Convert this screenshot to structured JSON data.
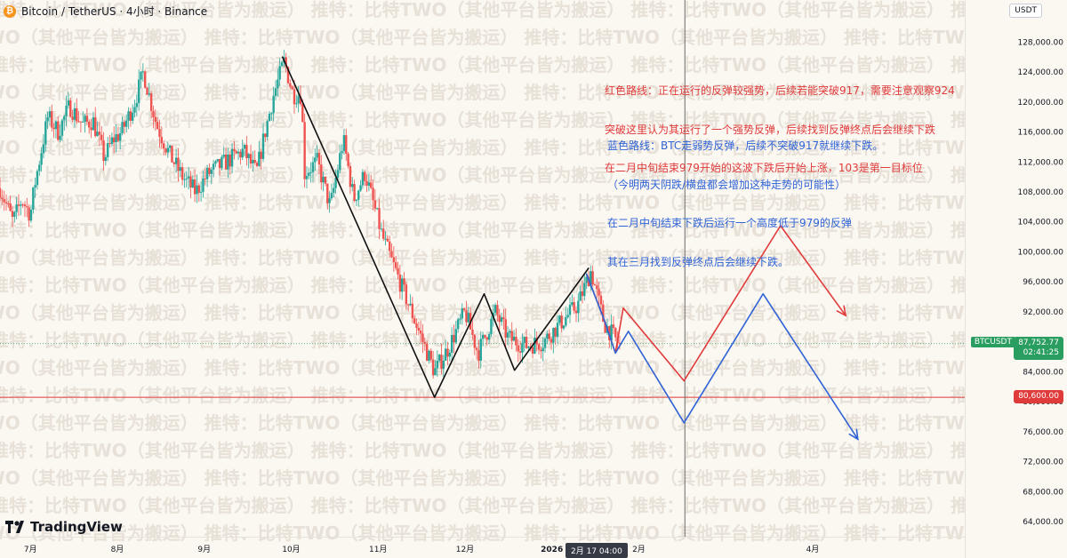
{
  "header": {
    "symbol_title": "Bitcoin / TetherUS · 4小时 · Binance",
    "currency_button": "USDT"
  },
  "watermark": [
    "推特：比特TWO（其他平台皆为搬运）"
  ],
  "annotations": {
    "red_route": [
      "红色路线：正在运行的反弹较强势，后续若能突破917，需要注意观察924",
      "突破这里认为其运行了一个强势反弹，后续找到反弹终点后会继续下跌",
      "在二月中旬结束979开始的这波下跌后开始上涨，103是第一目标位"
    ],
    "blue_route": [
      "蓝色路线：BTC走弱势反弹，后续不突破917就继续下跌。",
      "（今明两天阴跌/横盘都会增加这种走势的可能性）",
      "在二月中旬结束下跌后运行一个高度低于979的反弹",
      "其在三月找到反弹终点后会继续下跌。"
    ]
  },
  "price_badges": {
    "ticker": "BTCUSDT",
    "last_price": "87,752.77",
    "countdown": "02:41:25",
    "support_price": "80,600.00"
  },
  "crosshair": {
    "date_label": "2月 17   04:00"
  },
  "brand": {
    "name": "TradingView"
  },
  "colors": {
    "up": "#26a69a",
    "down": "#ef5350",
    "red_route": "#e03b3b",
    "blue_route": "#2f63d6",
    "wave": "#111111",
    "support_line": "#e03b3b",
    "last_price_line": "#2a9d60"
  },
  "chart_data": {
    "type": "candlestick",
    "title": "Bitcoin / TetherUS · 4小时 · Binance",
    "y_axis": {
      "ticks": [
        64000,
        68000,
        72000,
        76000,
        80000,
        84000,
        88000,
        92000,
        96000,
        100000,
        104000,
        108000,
        112000,
        116000,
        120000,
        124000,
        128000
      ],
      "tick_labels": [
        "64,000.00",
        "68,000.00",
        "72,000.00",
        "76,000.00",
        "80,000.00",
        "84,000.00",
        "88,000.00",
        "92,000.00",
        "96,000.00",
        "100,000.00",
        "104,000.00",
        "108,000.00",
        "112,000.00",
        "116,000.00",
        "120,000.00",
        "124,000.00",
        "128,000.00"
      ],
      "range": [
        62000,
        131000
      ]
    },
    "x_axis": {
      "tick_labels": [
        "7月",
        "8月",
        "9月",
        "10月",
        "11月",
        "12月",
        "2026",
        "2月",
        "4月"
      ],
      "tick_months": [
        0,
        1,
        2,
        3,
        4,
        5,
        6,
        7,
        9
      ],
      "range_months": [
        -0.35,
        10.75
      ]
    },
    "price_anchors": [
      [
        -0.35,
        108500
      ],
      [
        -0.2,
        104000
      ],
      [
        -0.1,
        107000
      ],
      [
        0.0,
        105000
      ],
      [
        0.05,
        109000
      ],
      [
        0.2,
        118000
      ],
      [
        0.32,
        116000
      ],
      [
        0.45,
        119500
      ],
      [
        0.6,
        117000
      ],
      [
        0.72,
        117500
      ],
      [
        0.85,
        112500
      ],
      [
        0.95,
        115000
      ],
      [
        1.05,
        116000
      ],
      [
        1.2,
        120000
      ],
      [
        1.3,
        124000
      ],
      [
        1.45,
        117000
      ],
      [
        1.6,
        113000
      ],
      [
        1.75,
        110000
      ],
      [
        1.9,
        108000
      ],
      [
        2.05,
        110500
      ],
      [
        2.25,
        112000
      ],
      [
        2.45,
        113500
      ],
      [
        2.6,
        110500
      ],
      [
        2.7,
        116000
      ],
      [
        2.8,
        121000
      ],
      [
        2.92,
        125500
      ],
      [
        3.02,
        121000
      ],
      [
        3.12,
        121000
      ],
      [
        3.15,
        110500
      ],
      [
        3.3,
        112000
      ],
      [
        3.45,
        106000
      ],
      [
        3.6,
        115000
      ],
      [
        3.72,
        107000
      ],
      [
        3.85,
        110500
      ],
      [
        4.05,
        102000
      ],
      [
        4.25,
        96000
      ],
      [
        4.45,
        90000
      ],
      [
        4.65,
        84000
      ],
      [
        4.8,
        87000
      ],
      [
        5.0,
        92000
      ],
      [
        5.15,
        86500
      ],
      [
        5.35,
        92000
      ],
      [
        5.5,
        88500
      ],
      [
        5.7,
        87500
      ],
      [
        5.9,
        88000
      ],
      [
        6.1,
        90500
      ],
      [
        6.3,
        93000
      ],
      [
        6.45,
        97500
      ],
      [
        6.6,
        90500
      ],
      [
        6.78,
        87500
      ]
    ],
    "highlighted_levels": {
      "support": 80600,
      "last_price": 87752.77
    },
    "wave_path": [
      [
        2.9,
        126000
      ],
      [
        4.65,
        80600
      ],
      [
        5.22,
        94400
      ],
      [
        5.57,
        84200
      ],
      [
        6.42,
        97800
      ]
    ],
    "red_route": [
      [
        6.4,
        97000
      ],
      [
        6.6,
        91000
      ],
      [
        6.73,
        86500
      ],
      [
        6.82,
        92500
      ],
      [
        7.52,
        82800
      ],
      [
        8.63,
        103500
      ],
      [
        9.38,
        91500
      ]
    ],
    "blue_route": [
      [
        6.4,
        97000
      ],
      [
        6.6,
        91000
      ],
      [
        6.73,
        86500
      ],
      [
        6.88,
        89400
      ],
      [
        7.52,
        77200
      ],
      [
        8.43,
        94400
      ],
      [
        9.52,
        75000
      ]
    ],
    "crosshair_x": 7.53
  }
}
